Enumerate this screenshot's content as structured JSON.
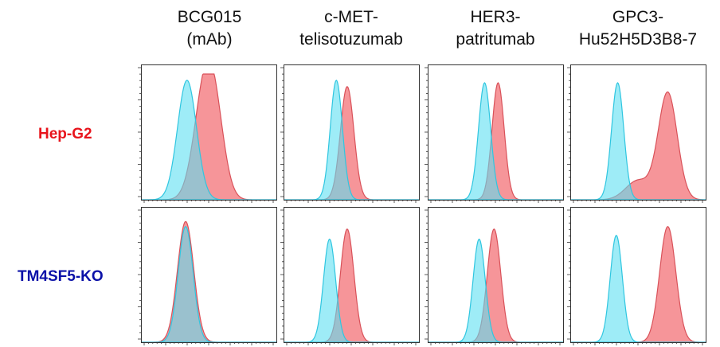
{
  "chart_data": {
    "type": "area",
    "columns": [
      {
        "line1": "BCG015",
        "line2": "(mAb)"
      },
      {
        "line1": "c-MET-",
        "line2": "telisotuzumab"
      },
      {
        "line1": "HER3-",
        "line2": "patritumab"
      },
      {
        "line1": "GPC3-",
        "line2": "Hu52H5D3B8-7"
      }
    ],
    "rows": [
      {
        "label": "Hep-G2",
        "color": "#e8141c"
      },
      {
        "label": "TM4SF5-KO",
        "color": "#0b11a8"
      }
    ],
    "series_colors": {
      "control": "#5ee0f2",
      "stained": "#f58a8e",
      "overlap": "#8aa6b8"
    },
    "x_range": [
      0,
      1
    ],
    "y_range": [
      0,
      1
    ],
    "panels": [
      [
        {
          "control": {
            "peak": 0.34,
            "width": 0.07,
            "height": 0.95
          },
          "stained": {
            "peak": 0.47,
            "width": 0.08,
            "height": 0.82,
            "shoulder": 0.55
          }
        },
        {
          "control": {
            "peak": 0.39,
            "width": 0.045,
            "height": 0.95
          },
          "stained": {
            "peak": 0.47,
            "width": 0.05,
            "height": 0.9
          }
        },
        {
          "control": {
            "peak": 0.42,
            "width": 0.045,
            "height": 0.93
          },
          "stained": {
            "peak": 0.52,
            "width": 0.045,
            "height": 0.93
          }
        },
        {
          "control": {
            "peak": 0.35,
            "width": 0.045,
            "height": 0.93
          },
          "stained": {
            "peak": 0.72,
            "width": 0.07,
            "height": 0.85,
            "tail": 0.5
          }
        }
      ],
      [
        {
          "control": {
            "peak": 0.33,
            "width": 0.055,
            "height": 0.92
          },
          "stained": {
            "peak": 0.33,
            "width": 0.06,
            "height": 0.96
          }
        },
        {
          "control": {
            "peak": 0.34,
            "width": 0.045,
            "height": 0.82
          },
          "stained": {
            "peak": 0.47,
            "width": 0.05,
            "height": 0.9
          }
        },
        {
          "control": {
            "peak": 0.38,
            "width": 0.045,
            "height": 0.82
          },
          "stained": {
            "peak": 0.49,
            "width": 0.05,
            "height": 0.9
          }
        },
        {
          "control": {
            "peak": 0.34,
            "width": 0.045,
            "height": 0.85
          },
          "stained": {
            "peak": 0.72,
            "width": 0.06,
            "height": 0.92
          }
        }
      ]
    ]
  }
}
